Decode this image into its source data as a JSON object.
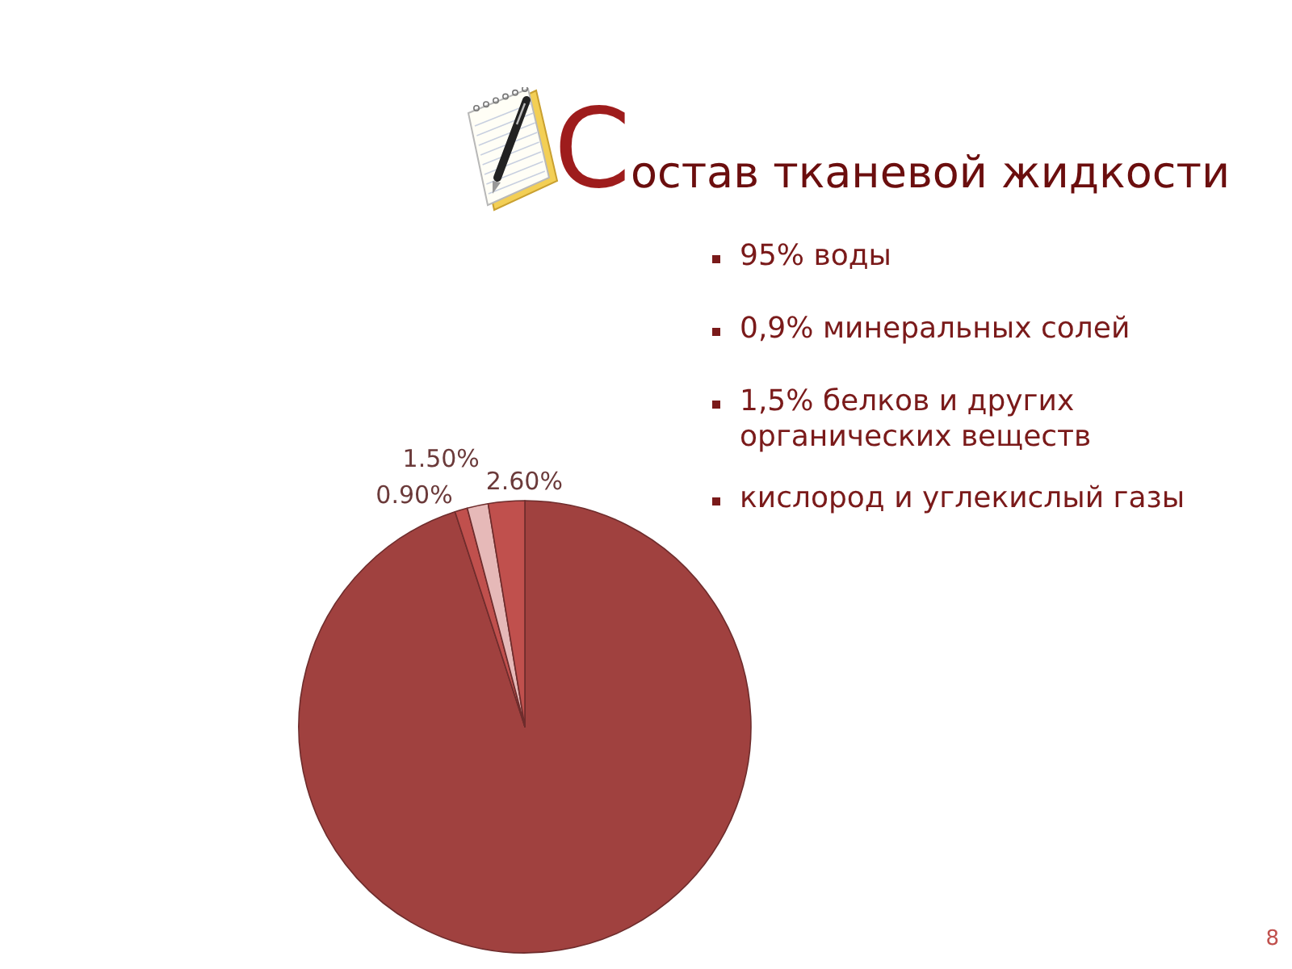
{
  "chart_data": {
    "type": "pie",
    "title": "Состав тканевой жидкости",
    "categories": [
      null,
      null,
      null,
      null
    ],
    "values": [
      95,
      0.9,
      1.5,
      2.6
    ],
    "colors": [
      "#a0413f",
      "#c0504d",
      "#e6b9b8",
      "#c0504d"
    ],
    "value_labels": [
      null,
      "0.90%",
      "1.50%",
      "2.60%"
    ],
    "annotations": [
      "95% воды",
      "0,9% минеральных солей",
      "1,5% белков и других органических веществ",
      "кислород и углекислый газы",
      "8"
    ]
  }
}
